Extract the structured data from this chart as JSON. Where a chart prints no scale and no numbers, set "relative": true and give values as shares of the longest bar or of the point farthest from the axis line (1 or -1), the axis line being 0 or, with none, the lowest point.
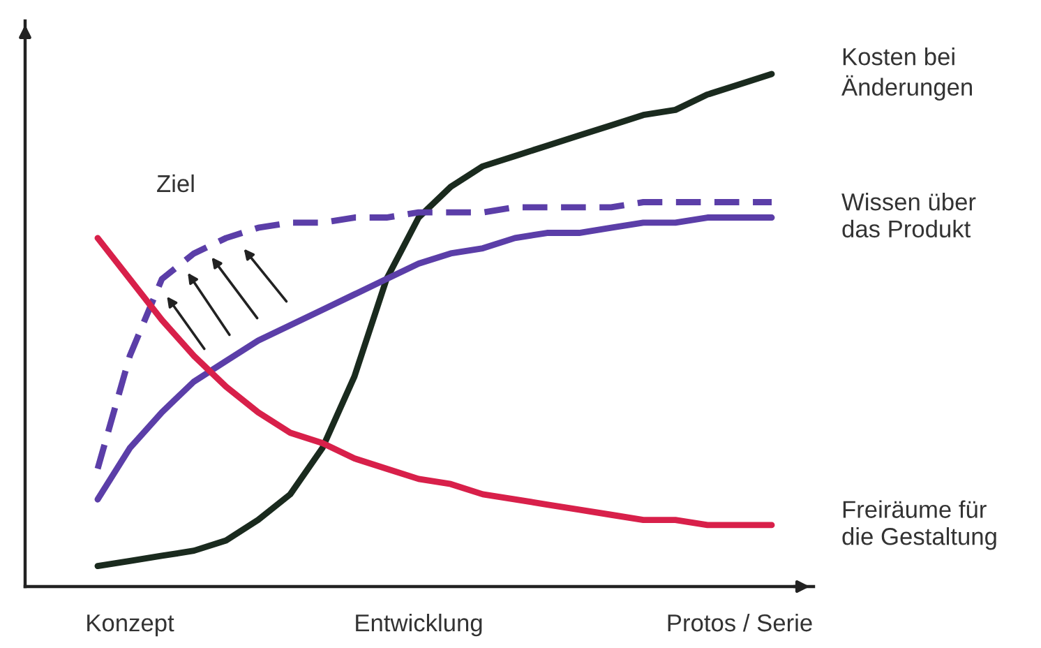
{
  "chart_data": {
    "type": "line",
    "relative": true,
    "grid": false,
    "marker": "none",
    "categories": [
      null,
      "Konzept",
      null,
      null,
      null,
      null,
      null,
      null,
      null,
      null,
      "Entwicklung",
      null,
      null,
      null,
      null,
      null,
      null,
      null,
      null,
      null,
      "Protos / Serie",
      null
    ],
    "annotations": [
      "Ziel"
    ],
    "series": [
      {
        "name": "Kosten bei\nÄnderungen",
        "color": "#1a2a1e",
        "line_style": "solid",
        "values": [
          0.04,
          0.05,
          0.06,
          0.07,
          0.09,
          0.13,
          0.18,
          0.27,
          0.41,
          0.6,
          0.72,
          0.78,
          0.82,
          0.84,
          0.86,
          0.88,
          0.9,
          0.92,
          0.93,
          0.96,
          0.98,
          1
        ]
      },
      {
        "name": "Wissen über\ndas Produkt",
        "color": "#5b3ea8",
        "line_style": "solid",
        "values": [
          0.17,
          0.27,
          0.34,
          0.4,
          0.44,
          0.48,
          0.51,
          0.54,
          0.57,
          0.6,
          0.63,
          0.65,
          0.66,
          0.68,
          0.69,
          0.69,
          0.7,
          0.71,
          0.71,
          0.72,
          0.72,
          0.72
        ]
      },
      {
        "color": "#5b3ea8",
        "line_style": "dashed",
        "values": [
          0.23,
          0.45,
          0.6,
          0.65,
          0.68,
          0.7,
          0.71,
          0.71,
          0.72,
          0.72,
          0.73,
          0.73,
          0.73,
          0.74,
          0.74,
          0.74,
          0.74,
          0.75,
          0.75,
          0.75,
          0.75,
          0.75
        ]
      },
      {
        "name": "Freiräume für\ndie Gestaltung",
        "color": "#d8204a",
        "line_style": "solid",
        "values": [
          0.68,
          0.6,
          0.52,
          0.45,
          0.39,
          0.34,
          0.3,
          0.28,
          0.25,
          0.23,
          0.21,
          0.2,
          0.18,
          0.17,
          0.16,
          0.15,
          0.14,
          0.13,
          0.13,
          0.12,
          0.12,
          0.12
        ]
      }
    ]
  }
}
